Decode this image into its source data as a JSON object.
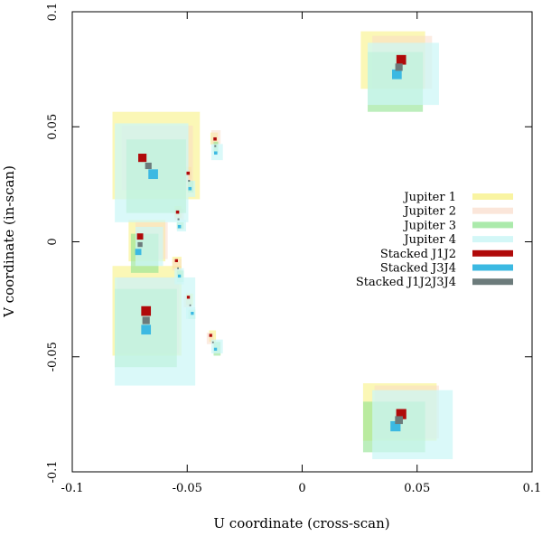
{
  "chart_data": {
    "type": "scatter",
    "title": "",
    "xlabel": "U coordinate (cross-scan)",
    "ylabel": "V coordinate (in-scan)",
    "xlim": [
      -0.1,
      0.1
    ],
    "ylim": [
      -0.1,
      0.1
    ],
    "xticks": [
      -0.1,
      -0.05,
      0,
      0.05,
      0.1
    ],
    "yticks": [
      -0.1,
      -0.05,
      0,
      0.05,
      0.1
    ],
    "xtick_labels": [
      "-0.1",
      "-0.05",
      "0",
      "0.05",
      "0.1"
    ],
    "ytick_labels": [
      "-0.1",
      "-0.05",
      "0",
      "0.05",
      "0.1"
    ],
    "legend_position": "right",
    "series": [
      {
        "name": "Jupiter 1",
        "color": "#f7f07a",
        "opacity": 0.55,
        "kind": "box",
        "boxes": [
          [
            -0.0825,
            0.0565,
            -0.0445,
            0.0185
          ],
          [
            -0.0755,
            0.0095,
            -0.0595,
            -0.0085
          ],
          [
            -0.0825,
            -0.0105,
            -0.0525,
            -0.0495
          ],
          [
            0.0255,
            0.0915,
            0.0535,
            0.0665
          ],
          [
            0.0265,
            -0.0615,
            0.0585,
            -0.0865
          ],
          [
            -0.0399,
            0.0475,
            -0.0366,
            0.0423
          ],
          [
            -0.0507,
            0.0325,
            -0.0482,
            0.0275
          ],
          [
            -0.0555,
            0.0155,
            -0.0525,
            0.0105
          ],
          [
            -0.0565,
            -0.0065,
            -0.0525,
            -0.0115
          ],
          [
            -0.0505,
            -0.0225,
            -0.0475,
            -0.0275
          ],
          [
            -0.0405,
            -0.0385,
            -0.0375,
            -0.0435
          ]
        ]
      },
      {
        "name": "Jupiter 2",
        "color": "#f9d9c6",
        "opacity": 0.5,
        "kind": "box",
        "boxes": [
          [
            -0.0785,
            0.0505,
            -0.0475,
            0.0225
          ],
          [
            -0.0725,
            0.0085,
            -0.0585,
            -0.0075
          ],
          [
            -0.0805,
            -0.0155,
            -0.0535,
            -0.0485
          ],
          [
            0.0305,
            0.0895,
            0.0565,
            0.0665
          ],
          [
            0.0315,
            -0.0625,
            0.0595,
            -0.0855
          ],
          [
            -0.0395,
            0.0485,
            -0.0355,
            0.0425
          ],
          [
            -0.0515,
            0.0315,
            -0.0485,
            0.0265
          ],
          [
            -0.0555,
            0.0145,
            -0.0515,
            0.0095
          ],
          [
            -0.0565,
            -0.0075,
            -0.0525,
            -0.0125
          ],
          [
            -0.0515,
            -0.0235,
            -0.0485,
            -0.0285
          ],
          [
            -0.0415,
            -0.0395,
            -0.0385,
            -0.0445
          ]
        ]
      },
      {
        "name": "Jupiter 3",
        "color": "#8fe38f",
        "opacity": 0.6,
        "kind": "box",
        "boxes": [
          [
            -0.0765,
            0.0445,
            -0.0505,
            0.0125
          ],
          [
            -0.0745,
            0.0035,
            -0.0625,
            -0.0135
          ],
          [
            -0.0815,
            -0.0205,
            -0.0545,
            -0.0545
          ],
          [
            0.0285,
            0.0825,
            0.0525,
            0.0565
          ],
          [
            0.0265,
            -0.0695,
            0.0535,
            -0.0915
          ],
          [
            -0.0385,
            0.0435,
            -0.0365,
            0.0385
          ],
          [
            -0.0497,
            0.0265,
            -0.0473,
            0.0215
          ],
          [
            -0.0545,
            0.0085,
            -0.0515,
            0.0055
          ],
          [
            -0.0545,
            -0.0125,
            -0.0515,
            -0.0175
          ],
          [
            -0.0495,
            -0.0295,
            -0.0465,
            -0.0335
          ],
          [
            -0.0385,
            -0.0435,
            -0.0355,
            -0.0495
          ]
        ]
      },
      {
        "name": "Jupiter 4",
        "color": "#ccf6f6",
        "opacity": 0.72,
        "kind": "box",
        "boxes": [
          [
            -0.0815,
            0.0515,
            -0.0495,
            0.0085
          ],
          [
            -0.0725,
            0.0065,
            -0.0605,
            -0.0105
          ],
          [
            -0.0815,
            -0.0155,
            -0.0465,
            -0.0625
          ],
          [
            0.0285,
            0.0865,
            0.0595,
            0.0595
          ],
          [
            0.0305,
            -0.0645,
            0.0655,
            -0.0945
          ],
          [
            -0.0395,
            0.0425,
            -0.0345,
            0.0355
          ],
          [
            -0.0495,
            0.0265,
            -0.0465,
            0.0195
          ],
          [
            -0.0545,
            0.0095,
            -0.0505,
            0.0045
          ],
          [
            -0.0555,
            -0.0115,
            -0.0515,
            -0.0185
          ],
          [
            -0.0505,
            -0.0285,
            -0.0465,
            -0.0335
          ],
          [
            -0.0395,
            -0.0425,
            -0.0345,
            -0.0485
          ]
        ]
      },
      {
        "name": "Stacked J1J2",
        "color": "#b00a0a",
        "opacity": 1,
        "kind": "point",
        "points": [
          [
            -0.0695,
            0.0365
          ],
          [
            -0.0705,
            0.0023
          ],
          [
            -0.0679,
            -0.0301
          ],
          [
            0.0431,
            0.0791
          ],
          [
            0.0431,
            -0.0749
          ],
          [
            -0.0379,
            0.0447
          ],
          [
            -0.0496,
            0.0298
          ],
          [
            -0.0542,
            0.0129
          ],
          [
            -0.0547,
            -0.0082
          ],
          [
            -0.0495,
            -0.0241
          ],
          [
            -0.0398,
            -0.0407
          ]
        ],
        "sizes": [
          0.0036,
          0.0027,
          0.0042,
          0.0042,
          0.0044,
          0.0014,
          0.0014,
          0.0014,
          0.0013,
          0.0013,
          0.0013
        ]
      },
      {
        "name": "Stacked J3J4",
        "color": "#3cb9e2",
        "opacity": 1,
        "kind": "point",
        "points": [
          [
            -0.0648,
            0.0294
          ],
          [
            -0.0713,
            -0.0044
          ],
          [
            -0.0679,
            -0.0382
          ],
          [
            0.0412,
            0.0728
          ],
          [
            0.0406,
            -0.0802
          ],
          [
            -0.0376,
            0.0386
          ],
          [
            -0.0488,
            0.0231
          ],
          [
            -0.0534,
            0.0066
          ],
          [
            -0.0534,
            -0.0149
          ],
          [
            -0.0478,
            -0.0311
          ],
          [
            -0.0377,
            -0.0467
          ]
        ],
        "sizes": [
          0.0042,
          0.0027,
          0.0042,
          0.0042,
          0.0044,
          0.0014,
          0.0014,
          0.0014,
          0.0013,
          0.0013,
          0.0013
        ]
      },
      {
        "name": "Stacked J1J2J3J4",
        "color": "#6c7b7b",
        "opacity": 1,
        "kind": "point",
        "points": [
          [
            -0.0669,
            0.033
          ],
          [
            -0.0705,
            -0.0012
          ],
          [
            -0.0679,
            -0.0342
          ],
          [
            0.0421,
            0.0759
          ],
          [
            0.0421,
            -0.0775
          ],
          [
            -0.0378,
            0.0416
          ],
          [
            -0.0492,
            0.0265
          ],
          [
            -0.0538,
            0.0098
          ],
          [
            -0.054,
            -0.0115
          ],
          [
            -0.0487,
            -0.0276
          ],
          [
            -0.0388,
            -0.0437
          ]
        ],
        "sizes": [
          0.0028,
          0.0021,
          0.0032,
          0.0032,
          0.0034,
          0.0008,
          0.0008,
          0.0008,
          0.0007,
          0.0007,
          0.0007
        ]
      }
    ]
  }
}
